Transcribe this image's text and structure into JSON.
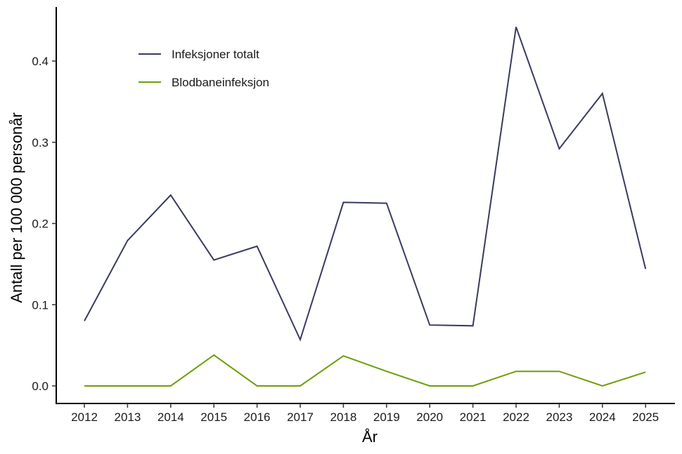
{
  "chart_data": {
    "type": "line",
    "title": "",
    "xlabel": "År",
    "ylabel": "Antall per 100 000 personår",
    "categories": [
      "2012",
      "2013",
      "2014",
      "2015",
      "2016",
      "2017",
      "2018",
      "2019",
      "2020",
      "2021",
      "2022",
      "2023",
      "2024",
      "2025"
    ],
    "ylim": [
      -0.022,
      0.465
    ],
    "yticks": [
      0.0,
      0.1,
      0.2,
      0.3,
      0.4
    ],
    "ytick_labels": [
      "0.0",
      "0.1",
      "0.2",
      "0.3",
      "0.4"
    ],
    "grid": false,
    "legend_position": "top-left inside",
    "series": [
      {
        "name": "Infeksjoner totalt",
        "color": "#383B5E",
        "values": [
          0.08,
          0.179,
          0.235,
          0.155,
          0.172,
          0.057,
          0.226,
          0.225,
          0.075,
          0.074,
          0.442,
          0.292,
          0.36,
          0.144
        ]
      },
      {
        "name": "Blodbaneinfeksjon",
        "color": "#6E9D0A",
        "values": [
          0.0,
          0.0,
          0.0,
          0.038,
          0.0,
          0.0,
          0.037,
          0.018,
          0.0,
          0.0,
          0.018,
          0.018,
          0.0,
          0.017
        ]
      }
    ]
  },
  "legend": {
    "items": [
      {
        "label": "Infeksjoner totalt",
        "color": "#383B5E"
      },
      {
        "label": "Blodbaneinfeksjon",
        "color": "#6E9D0A"
      }
    ]
  }
}
